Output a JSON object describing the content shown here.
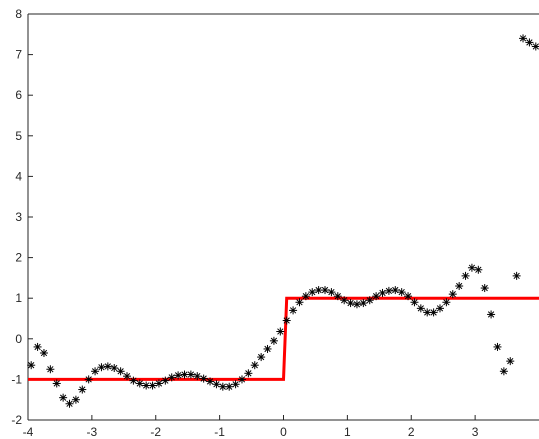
{
  "chart_data": {
    "type": "line",
    "title": "",
    "xlabel": "",
    "ylabel": "",
    "xlim": [
      -4,
      4
    ],
    "ylim": [
      -2,
      8
    ],
    "xticks": [
      -4,
      -3,
      -2,
      -1,
      0,
      1,
      2,
      3
    ],
    "yticks": [
      -2,
      -1,
      0,
      1,
      2,
      3,
      4,
      5,
      6,
      7,
      8
    ],
    "xtick_labels": [
      "-4",
      "-3",
      "-2",
      "-1",
      "0",
      "1",
      "2",
      "3"
    ],
    "ytick_labels": [
      "-2",
      "-1",
      "0",
      "1",
      "2",
      "3",
      "4",
      "5",
      "6",
      "7",
      "8"
    ],
    "grid": false,
    "legend": "none",
    "series": [
      {
        "style": "line",
        "color": "#ff0000",
        "x": [
          -4,
          0,
          0.05,
          4
        ],
        "y": [
          -1,
          -1,
          1,
          1
        ]
      },
      {
        "style": "markers-asterisk",
        "color": "#000000",
        "x": [
          -3.95,
          -3.85,
          -3.75,
          -3.65,
          -3.55,
          -3.45,
          -3.35,
          -3.25,
          -3.15,
          -3.05,
          -2.95,
          -2.85,
          -2.75,
          -2.65,
          -2.55,
          -2.45,
          -2.35,
          -2.25,
          -2.15,
          -2.05,
          -1.95,
          -1.85,
          -1.75,
          -1.65,
          -1.55,
          -1.45,
          -1.35,
          -1.25,
          -1.15,
          -1.05,
          -0.95,
          -0.85,
          -0.75,
          -0.65,
          -0.55,
          -0.45,
          -0.35,
          -0.25,
          -0.15,
          -0.05,
          0.05,
          0.15,
          0.25,
          0.35,
          0.45,
          0.55,
          0.65,
          0.75,
          0.85,
          0.95,
          1.05,
          1.15,
          1.25,
          1.35,
          1.45,
          1.55,
          1.65,
          1.75,
          1.85,
          1.95,
          2.05,
          2.15,
          2.25,
          2.35,
          2.45,
          2.55,
          2.65,
          2.75,
          2.85,
          2.95,
          3.05,
          3.15,
          3.25,
          3.35,
          3.45,
          3.55,
          3.65,
          3.75,
          3.85,
          3.95
        ],
        "y": [
          -0.65,
          -0.2,
          -0.35,
          -0.75,
          -1.1,
          -1.45,
          -1.6,
          -1.5,
          -1.25,
          -1.0,
          -0.8,
          -0.7,
          -0.68,
          -0.72,
          -0.8,
          -0.92,
          -1.03,
          -1.1,
          -1.15,
          -1.15,
          -1.1,
          -1.03,
          -0.95,
          -0.9,
          -0.88,
          -0.88,
          -0.92,
          -0.98,
          -1.05,
          -1.12,
          -1.18,
          -1.18,
          -1.12,
          -1.0,
          -0.85,
          -0.65,
          -0.45,
          -0.25,
          -0.05,
          0.18,
          0.45,
          0.7,
          0.9,
          1.05,
          1.15,
          1.2,
          1.2,
          1.15,
          1.05,
          0.95,
          0.88,
          0.85,
          0.88,
          0.95,
          1.05,
          1.13,
          1.18,
          1.2,
          1.15,
          1.05,
          0.9,
          0.75,
          0.65,
          0.65,
          0.75,
          0.9,
          1.1,
          1.3,
          1.55,
          1.75,
          1.7,
          1.25,
          0.6,
          -0.2,
          -0.8,
          -0.55,
          1.55,
          7.4,
          7.3,
          7.2
        ]
      }
    ]
  }
}
